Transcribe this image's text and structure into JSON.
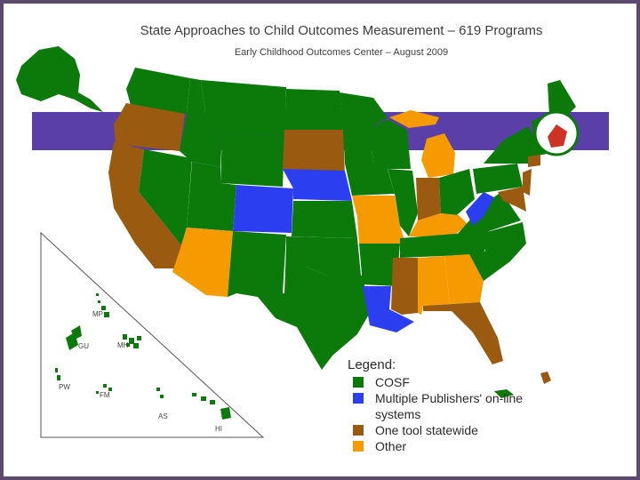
{
  "title": "State Approaches to Child Outcomes Measurement – 619 Programs",
  "subtitle": "Early Childhood Outcomes Center – August 2009",
  "colors": {
    "cosf": "#0b7a0b",
    "multiple_publishers": "#2b3ff0",
    "one_tool": "#9a5a10",
    "other": "#f59a00",
    "band": "#5b3fa8"
  },
  "legend": {
    "title": "Legend:",
    "items": [
      {
        "label": "COSF",
        "color": "#0b7a0b"
      },
      {
        "label": "Multiple Publishers' on-line systems",
        "color": "#2b3ff0"
      },
      {
        "label": "One tool statewide",
        "color": "#9a5a10"
      },
      {
        "label": "Other",
        "color": "#f59a00"
      }
    ]
  },
  "territories": {
    "mp": "MP",
    "gu": "GU",
    "mh": "MH",
    "pw": "PW",
    "fm": "FM",
    "as": "AS",
    "hi": "HI"
  }
}
